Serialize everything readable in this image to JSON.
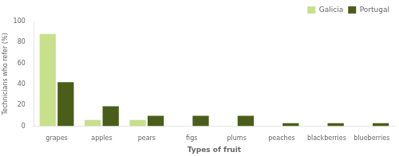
{
  "chart_data": {
    "type": "bar",
    "categories": [
      "grapes",
      "apples",
      "pears",
      "figs",
      "plums",
      "peaches",
      "blackberries",
      "blueberries"
    ],
    "series": [
      {
        "name": "Galicia",
        "color": "#c8e08c",
        "values": [
          88,
          6,
          6,
          0,
          0,
          0,
          0,
          0
        ]
      },
      {
        "name": "Portugal",
        "color": "#4a5e1a",
        "values": [
          42,
          19,
          10,
          10,
          10,
          3,
          3,
          3
        ]
      }
    ],
    "xlabel": "Types of fruit",
    "ylabel": "Technicians who refer (%)",
    "ylim": [
      0,
      100
    ],
    "yticks": [
      0,
      20,
      40,
      60,
      80,
      100
    ],
    "grid": false,
    "legend": "upper right"
  }
}
